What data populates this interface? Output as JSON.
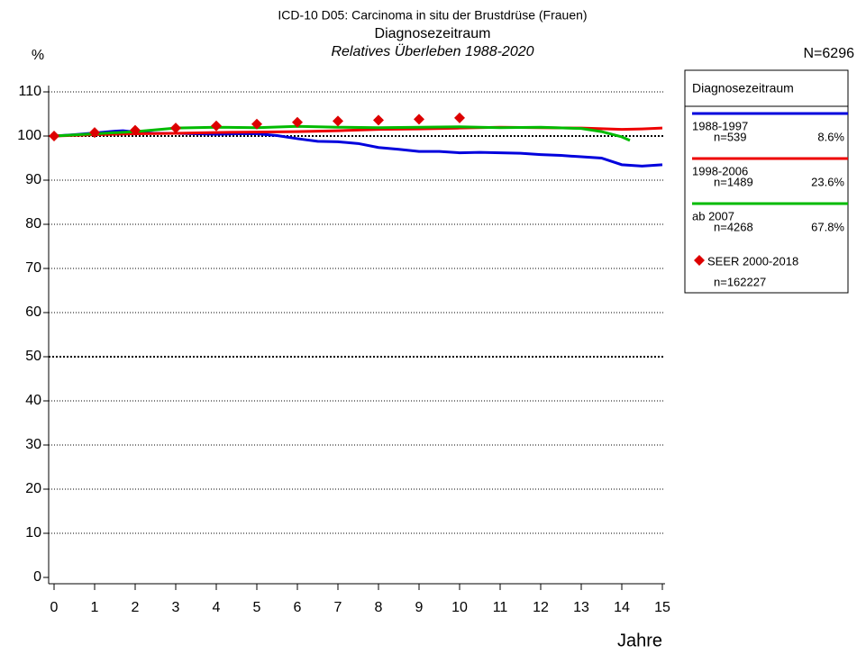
{
  "chart_data": {
    "type": "line",
    "title": "ICD-10 D05: Carcinoma in situ der Brustdrüse (Frauen)",
    "subtitle": "Diagnosezeitraum",
    "subtitle2": "Relatives Überleben 1988-2020",
    "y_label": "%",
    "x_label": "Jahre",
    "total": "N=6296",
    "legend_title": "Diagnosezeitraum",
    "xlim": [
      0,
      15
    ],
    "ylim": [
      0,
      110
    ],
    "xticks": [
      0,
      1,
      2,
      3,
      4,
      5,
      6,
      7,
      8,
      9,
      10,
      11,
      12,
      13,
      14,
      15
    ],
    "yticks": [
      0,
      10,
      20,
      30,
      40,
      50,
      60,
      70,
      80,
      90,
      100,
      110
    ],
    "grid": true,
    "bold_gridlines": [
      50,
      100
    ],
    "series": [
      {
        "name": "1988-1997",
        "n": "n=539",
        "share": "8.6%",
        "color": "#0000dd",
        "x": [
          0,
          0.5,
          1,
          1.5,
          1.7,
          2,
          2.5,
          3,
          3.5,
          4,
          4.5,
          5,
          5.5,
          6,
          6.5,
          7,
          7.5,
          8,
          8.5,
          9,
          9.5,
          10,
          10.5,
          11,
          11.5,
          12,
          12.5,
          13,
          13.5,
          14,
          14.5,
          15
        ],
        "values": [
          100,
          100.3,
          100.7,
          101.1,
          101.2,
          100.9,
          100.6,
          100.6,
          100.5,
          100.4,
          100.5,
          100.5,
          100.1,
          99.4,
          98.8,
          98.7,
          98.3,
          97.4,
          97,
          96.5,
          96.5,
          96.2,
          96.3,
          96.2,
          96.1,
          95.8,
          95.6,
          95.3,
          95,
          93.5,
          93.2,
          93.5
        ]
      },
      {
        "name": "1998-2006",
        "n": "n=1489",
        "share": "23.6%",
        "color": "#ee0000",
        "x": [
          0,
          1,
          2,
          3,
          4,
          5,
          6,
          7,
          8,
          9,
          10,
          11,
          12,
          13,
          14,
          14.5,
          15
        ],
        "values": [
          100,
          100.3,
          100.5,
          100.6,
          100.8,
          100.9,
          101,
          101.2,
          101.5,
          101.6,
          101.8,
          102,
          101.9,
          101.8,
          101.5,
          101.6,
          101.8
        ]
      },
      {
        "name": "ab 2007",
        "n": "n=4268",
        "share": "67.8%",
        "color": "#00bb00",
        "x": [
          0,
          1,
          2,
          3,
          4,
          5,
          6,
          7,
          8,
          9,
          10,
          11,
          12,
          13,
          13.5,
          14,
          14.2
        ],
        "values": [
          100,
          100.5,
          101,
          101.8,
          102,
          101.9,
          102.2,
          102,
          101.9,
          102,
          102.1,
          101.9,
          102,
          101.7,
          101,
          99.8,
          99
        ]
      }
    ],
    "markers": {
      "name": "SEER 2000-2018",
      "n": "n=162227",
      "color": "#dd0000",
      "x": [
        0,
        1,
        2,
        3,
        4,
        5,
        6,
        7,
        8,
        9,
        10
      ],
      "values": [
        100,
        100.8,
        101.3,
        101.8,
        102.3,
        102.7,
        103.1,
        103.4,
        103.6,
        103.8,
        104.1
      ]
    }
  }
}
